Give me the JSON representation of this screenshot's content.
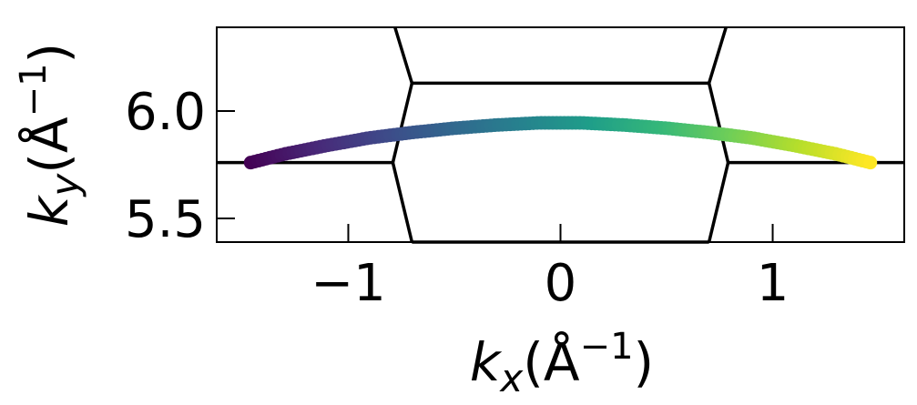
{
  "chart_data": {
    "type": "scatter",
    "xlabel_parts": {
      "k": "k",
      "sub": "x",
      "open": "(Å",
      "sup": "−1",
      "close": ")"
    },
    "ylabel_parts": {
      "k": "k",
      "sub": "y",
      "open": "(Å",
      "sup": "−1",
      "close": ")"
    },
    "xlim": [
      -1.62,
      1.62
    ],
    "ylim": [
      5.39,
      6.39
    ],
    "xticks": [
      {
        "value": -1,
        "label": "−1"
      },
      {
        "value": 0,
        "label": "0"
      },
      {
        "value": 1,
        "label": "1"
      }
    ],
    "yticks": [
      {
        "value": 5.5,
        "label": "5.5"
      },
      {
        "value": 6.0,
        "label": "6.0"
      }
    ],
    "grid": false,
    "colormap": "viridis",
    "curve": {
      "description_color": "color varies with x (viridis)",
      "x": [
        -1.46,
        -1.3,
        -1.1,
        -0.9,
        -0.7,
        -0.5,
        -0.3,
        -0.1,
        0.0,
        0.1,
        0.3,
        0.5,
        0.7,
        0.9,
        1.1,
        1.3,
        1.46
      ],
      "y": [
        5.76,
        5.8,
        5.84,
        5.875,
        5.9,
        5.92,
        5.935,
        5.945,
        5.945,
        5.945,
        5.935,
        5.92,
        5.9,
        5.875,
        5.84,
        5.8,
        5.76
      ]
    },
    "boundary_lines": [
      {
        "x": [
          -0.78,
          -0.7
        ],
        "y": [
          6.39,
          6.13
        ]
      },
      {
        "x": [
          -0.7,
          0.7
        ],
        "y": [
          6.13,
          6.13
        ]
      },
      {
        "x": [
          0.7,
          0.78
        ],
        "y": [
          6.13,
          6.39
        ]
      },
      {
        "x": [
          -1.62,
          -0.79
        ],
        "y": [
          5.76,
          5.76
        ]
      },
      {
        "x": [
          -0.79,
          -0.7
        ],
        "y": [
          5.76,
          5.39
        ]
      },
      {
        "x": [
          -0.7,
          0.7
        ],
        "y": [
          5.39,
          5.39
        ]
      },
      {
        "x": [
          0.7,
          0.79
        ],
        "y": [
          5.39,
          5.76
        ]
      },
      {
        "x": [
          0.79,
          1.62
        ],
        "y": [
          5.76,
          5.76
        ]
      },
      {
        "x": [
          -0.7,
          -0.79
        ],
        "y": [
          6.13,
          5.76
        ]
      },
      {
        "x": [
          0.7,
          0.79
        ],
        "y": [
          6.13,
          5.76
        ]
      }
    ]
  }
}
